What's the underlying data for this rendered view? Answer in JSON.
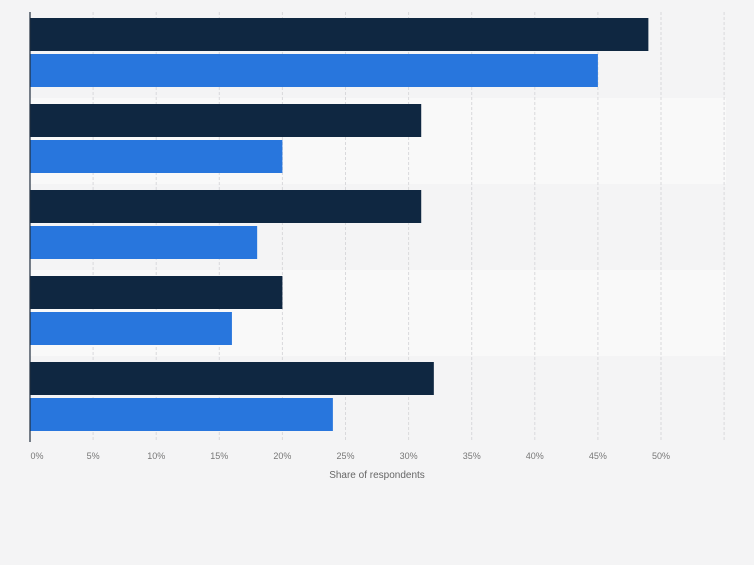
{
  "chart_data": {
    "type": "bar",
    "orientation": "horizontal",
    "categories": [
      "",
      "",
      "",
      "",
      ""
    ],
    "series": [
      {
        "values": [
          49,
          31,
          31,
          20,
          32
        ],
        "color": "#0f2741"
      },
      {
        "values": [
          45,
          20,
          18,
          16,
          24
        ],
        "color": "#2876dd"
      }
    ],
    "xlabel": "Share of respondents",
    "xlim": [
      0,
      55
    ],
    "xticks": [
      0,
      5,
      10,
      15,
      20,
      25,
      30,
      35,
      40,
      45,
      50
    ],
    "xtick_labels": [
      "0%",
      "5%",
      "10%",
      "15%",
      "20%",
      "25%",
      "30%",
      "35%",
      "40%",
      "45%",
      "50%"
    ],
    "grid": true,
    "legend": "none"
  }
}
